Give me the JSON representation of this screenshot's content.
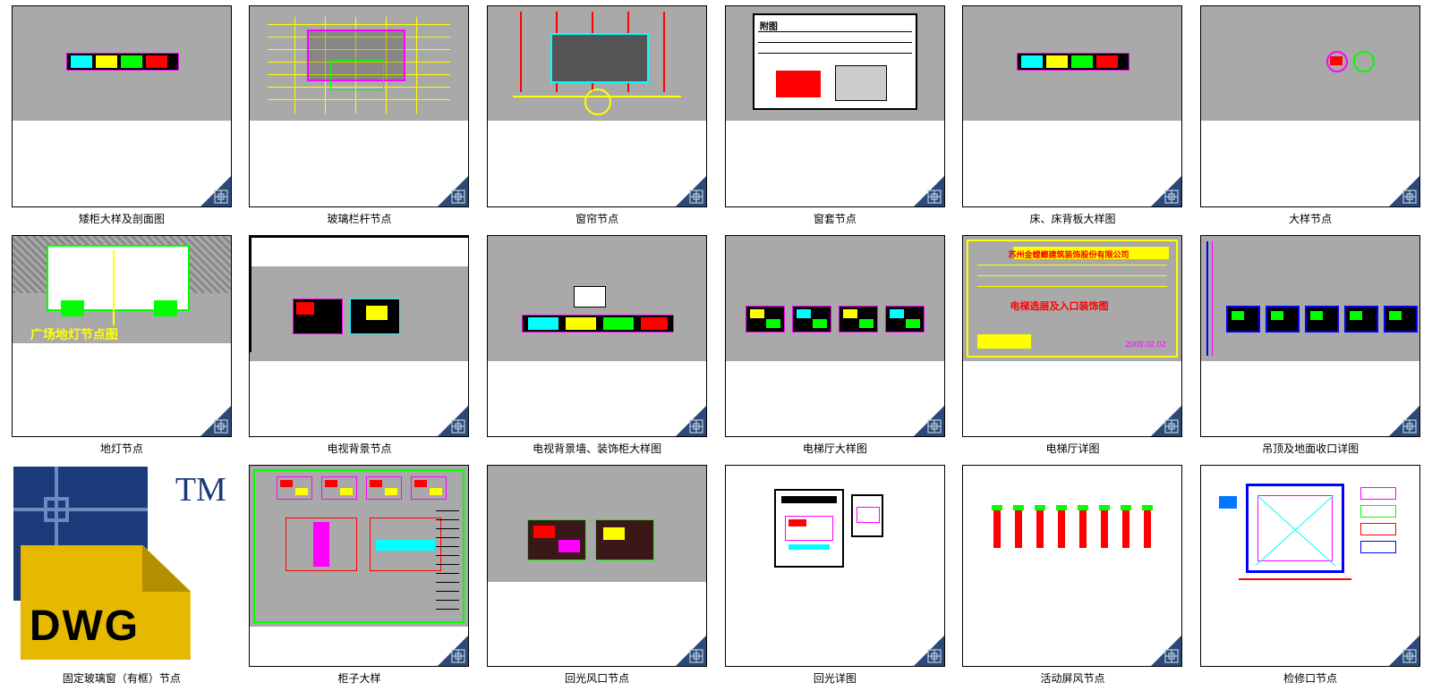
{
  "files": [
    {
      "label": "矮柜大样及剖面图",
      "gray_h": 128,
      "variant": "strip-colors"
    },
    {
      "label": "玻璃栏杆节点",
      "gray_h": 128,
      "variant": "grid-yellow"
    },
    {
      "label": "窗帘节点",
      "gray_h": 128,
      "variant": "curtain"
    },
    {
      "label": "窗套节点",
      "gray_h": 128,
      "variant": "titleblock-bw"
    },
    {
      "label": "床、床背板大样图",
      "gray_h": 128,
      "variant": "strip-colors"
    },
    {
      "label": "大样节点",
      "gray_h": 128,
      "variant": "two-circles"
    },
    {
      "label": "地灯节点",
      "gray_h": 120,
      "variant": "ground-light"
    },
    {
      "label": "电视背景节点",
      "gray_h": 140,
      "variant": "boxes-on-white"
    },
    {
      "label": "电视背景墙、装饰柜大样图",
      "gray_h": 140,
      "variant": "strip-mid"
    },
    {
      "label": "电梯厅大样图",
      "gray_h": 140,
      "variant": "four-panels"
    },
    {
      "label": "电梯厅详图",
      "gray_h": 140,
      "variant": "yellow-title"
    },
    {
      "label": "吊顶及地面收口详图",
      "gray_h": 140,
      "variant": "blue-panels"
    },
    {
      "label": "固定玻璃窗（有框）节点",
      "big_icon": true
    },
    {
      "label": "柜子大样",
      "gray_h": 180,
      "variant": "dense-plan"
    },
    {
      "label": "回光风口节点",
      "gray_h": 130,
      "variant": "two-redboxes"
    },
    {
      "label": "回光详图",
      "gray_h": 0,
      "variant": "two-sheets"
    },
    {
      "label": "活动屏风节点",
      "gray_h": 0,
      "variant": "red-verticals"
    },
    {
      "label": "检修口节点",
      "gray_h": 0,
      "variant": "blue-square"
    }
  ],
  "colors": {
    "gray": "#a9a9a9",
    "yellow": "#ffff00",
    "red": "#ff0000",
    "magenta": "#ff00ff",
    "cyan": "#00ffff",
    "green": "#00ff00",
    "blue": "#0000ff",
    "dkblue": "#2b4a7a",
    "white": "#ffffff",
    "black": "#000000",
    "bright_blue": "#0077ff",
    "dwg_yellow": "#e6b800"
  },
  "dwg_icon": {
    "text": "DWG",
    "tm": "TM"
  }
}
